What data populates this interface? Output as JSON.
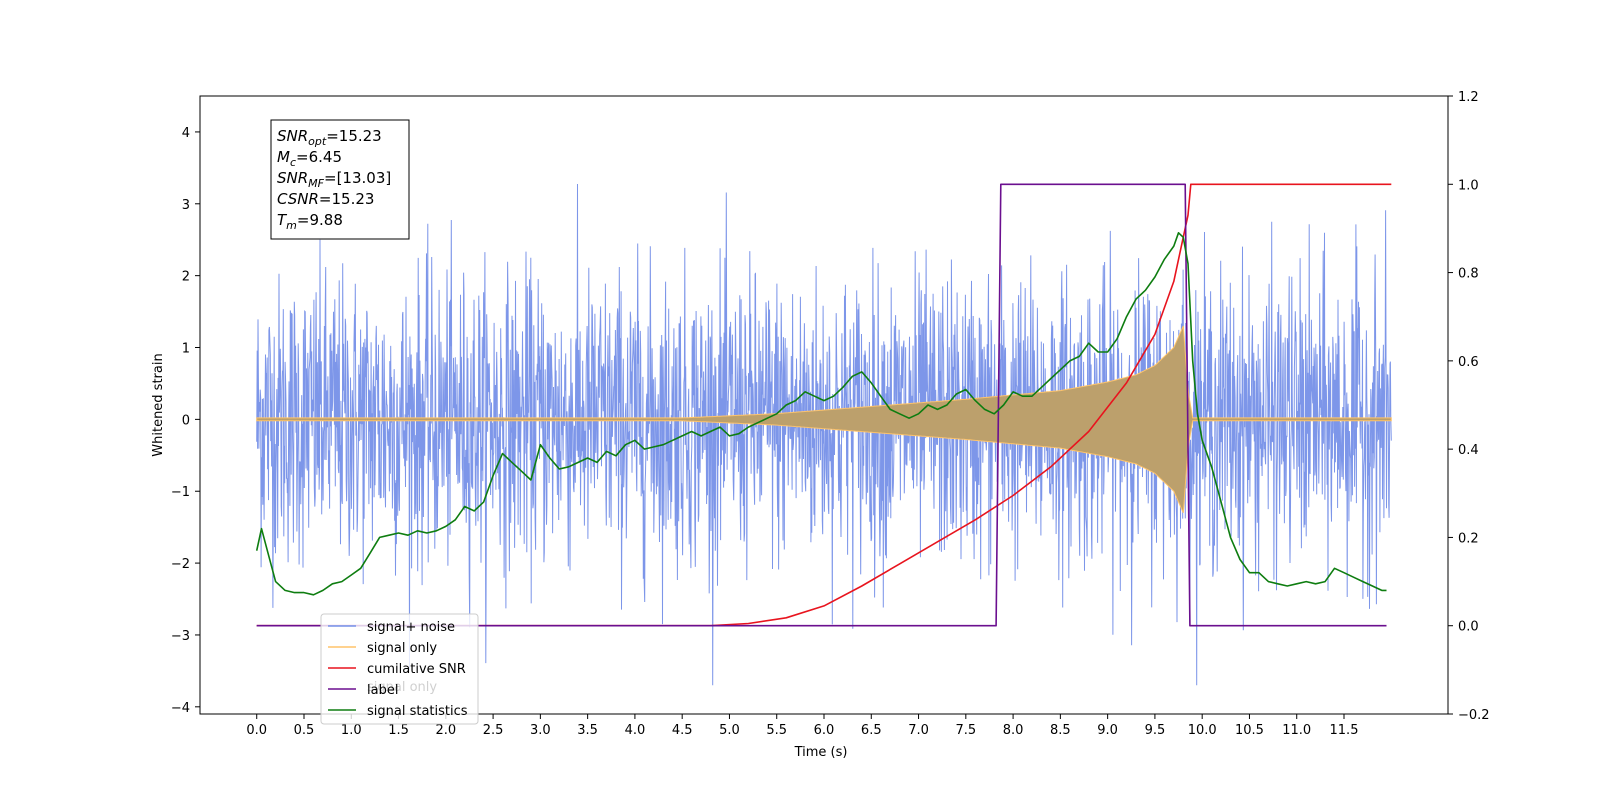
{
  "chart_data": {
    "type": "line",
    "xlabel": "Time (s)",
    "ylabel": "Whitened strain",
    "xlim": [
      -0.6,
      12.6
    ],
    "ylim": [
      -4.1,
      4.5
    ],
    "ylim_right": [
      -0.2,
      1.2
    ],
    "x_ticks": [
      0.0,
      0.5,
      1.0,
      1.5,
      2.0,
      2.5,
      3.0,
      3.5,
      4.0,
      4.5,
      5.0,
      5.5,
      6.0,
      6.5,
      7.0,
      7.5,
      8.0,
      8.5,
      9.0,
      9.5,
      10.0,
      10.5,
      11.0,
      11.5
    ],
    "x_tick_labels": [
      "0.0",
      "0.5",
      "1.0",
      "1.5",
      "2.0",
      "2.5",
      "3.0",
      "3.5",
      "4.0",
      "4.5",
      "5.0",
      "5.5",
      "6.0",
      "6.5",
      "7.0",
      "7.5",
      "8.0",
      "8.5",
      "9.0",
      "9.5",
      "10.0",
      "10.5",
      "11.0",
      "11.5"
    ],
    "y_ticks": [
      4,
      3,
      2,
      1,
      0,
      -1,
      -2,
      -3,
      -4
    ],
    "y_tick_labels": [
      "4",
      "3",
      "2",
      "1",
      "0",
      "−1",
      "−2",
      "−3",
      "−4"
    ],
    "y_right_ticks": [
      1.2,
      1.0,
      0.8,
      0.6,
      0.4,
      0.2,
      0.0,
      -0.2
    ],
    "y_right_tick_labels": [
      "1.2",
      "1.0",
      "0.8",
      "0.6",
      "0.4",
      "0.2",
      "0.0",
      "−0.2"
    ],
    "legend_position": "lower-left",
    "series": [
      {
        "name": "signal+ noise",
        "color": "#7690e8",
        "axis": "left",
        "description_points": {
          "x_range": [
            0.0,
            12.0
          ],
          "amplitude_range": [
            -3.7,
            4.1
          ]
        }
      },
      {
        "name": "signal only",
        "color": "#ffc46a",
        "axis": "left",
        "envelope": {
          "x": [
            0.0,
            4.5,
            5.5,
            6.5,
            7.5,
            8.0,
            8.5,
            9.0,
            9.3,
            9.5,
            9.7,
            9.8,
            9.85,
            9.9,
            12.0
          ],
          "amplitude": [
            0.02,
            0.02,
            0.08,
            0.18,
            0.28,
            0.34,
            0.4,
            0.52,
            0.62,
            0.75,
            1.0,
            1.3,
            0.4,
            0.02,
            0.02
          ]
        }
      },
      {
        "name": "cumilative SNR",
        "color": "#e8141e",
        "axis": "right",
        "x": [
          0.0,
          4.8,
          5.2,
          5.6,
          6.0,
          6.4,
          6.8,
          7.2,
          7.6,
          8.0,
          8.4,
          8.8,
          9.2,
          9.5,
          9.7,
          9.85,
          9.88,
          12.0
        ],
        "y": [
          0.0,
          0.0,
          0.005,
          0.018,
          0.045,
          0.09,
          0.14,
          0.19,
          0.24,
          0.295,
          0.36,
          0.44,
          0.55,
          0.66,
          0.78,
          0.93,
          1.0,
          1.0
        ]
      },
      {
        "name": "label",
        "color": "#6b0f8f",
        "axis": "right",
        "x": [
          0.0,
          7.82,
          7.87,
          9.82,
          9.87,
          11.95
        ],
        "y": [
          0.0,
          0.0,
          1.0,
          1.0,
          0.0,
          0.0
        ]
      },
      {
        "name": "signal statistics",
        "color": "#0e7d10",
        "axis": "right",
        "x": [
          0.0,
          0.05,
          0.1,
          0.2,
          0.3,
          0.4,
          0.5,
          0.6,
          0.7,
          0.8,
          0.9,
          1.0,
          1.1,
          1.2,
          1.3,
          1.4,
          1.5,
          1.6,
          1.7,
          1.8,
          1.9,
          2.0,
          2.1,
          2.2,
          2.3,
          2.4,
          2.5,
          2.6,
          2.7,
          2.8,
          2.9,
          3.0,
          3.1,
          3.2,
          3.3,
          3.4,
          3.5,
          3.6,
          3.7,
          3.8,
          3.9,
          4.0,
          4.1,
          4.2,
          4.3,
          4.4,
          4.5,
          4.6,
          4.7,
          4.8,
          4.9,
          5.0,
          5.1,
          5.2,
          5.3,
          5.4,
          5.5,
          5.6,
          5.7,
          5.8,
          5.9,
          6.0,
          6.1,
          6.2,
          6.3,
          6.4,
          6.5,
          6.6,
          6.7,
          6.8,
          6.9,
          7.0,
          7.1,
          7.2,
          7.3,
          7.4,
          7.5,
          7.6,
          7.7,
          7.8,
          7.9,
          8.0,
          8.1,
          8.2,
          8.3,
          8.4,
          8.5,
          8.6,
          8.7,
          8.8,
          8.9,
          9.0,
          9.1,
          9.2,
          9.3,
          9.4,
          9.5,
          9.6,
          9.7,
          9.75,
          9.8,
          9.85,
          9.9,
          9.95,
          10.0,
          10.1,
          10.2,
          10.3,
          10.4,
          10.5,
          10.6,
          10.7,
          10.8,
          10.9,
          11.0,
          11.1,
          11.2,
          11.3,
          11.4,
          11.5,
          11.6,
          11.7,
          11.8,
          11.9,
          11.95
        ],
        "y": [
          0.17,
          0.22,
          0.18,
          0.1,
          0.08,
          0.075,
          0.075,
          0.07,
          0.08,
          0.095,
          0.1,
          0.115,
          0.13,
          0.165,
          0.2,
          0.205,
          0.21,
          0.205,
          0.215,
          0.21,
          0.215,
          0.225,
          0.24,
          0.27,
          0.26,
          0.28,
          0.34,
          0.39,
          0.37,
          0.35,
          0.33,
          0.41,
          0.38,
          0.355,
          0.36,
          0.37,
          0.38,
          0.37,
          0.395,
          0.385,
          0.41,
          0.42,
          0.4,
          0.405,
          0.41,
          0.42,
          0.43,
          0.44,
          0.43,
          0.44,
          0.45,
          0.43,
          0.435,
          0.45,
          0.46,
          0.47,
          0.48,
          0.5,
          0.51,
          0.53,
          0.52,
          0.51,
          0.52,
          0.54,
          0.565,
          0.575,
          0.55,
          0.52,
          0.49,
          0.48,
          0.47,
          0.48,
          0.5,
          0.49,
          0.5,
          0.525,
          0.535,
          0.51,
          0.49,
          0.48,
          0.5,
          0.53,
          0.52,
          0.52,
          0.54,
          0.56,
          0.58,
          0.6,
          0.61,
          0.64,
          0.62,
          0.62,
          0.65,
          0.7,
          0.74,
          0.76,
          0.79,
          0.83,
          0.86,
          0.89,
          0.88,
          0.82,
          0.6,
          0.48,
          0.42,
          0.36,
          0.28,
          0.2,
          0.15,
          0.12,
          0.12,
          0.1,
          0.095,
          0.09,
          0.095,
          0.1,
          0.095,
          0.1,
          0.13,
          0.12,
          0.11,
          0.1,
          0.09,
          0.08,
          0.08
        ]
      }
    ],
    "legend_entries": [
      "signal+ noise",
      "signal only",
      "cumilative SNR",
      "label",
      "signal statistics"
    ],
    "legend_overlap_text": "signal only",
    "info_box": [
      {
        "main": "SNR",
        "sub": "opt",
        "rest": "=15.23"
      },
      {
        "main": "M",
        "sub": "c",
        "rest": "=6.45"
      },
      {
        "main": "SNR",
        "sub": "MF",
        "rest": "=[13.03]"
      },
      {
        "main": "CSNR",
        "sub": "",
        "rest": "=15.23"
      },
      {
        "main": "T",
        "sub": "m",
        "rest": "=9.88"
      }
    ]
  }
}
